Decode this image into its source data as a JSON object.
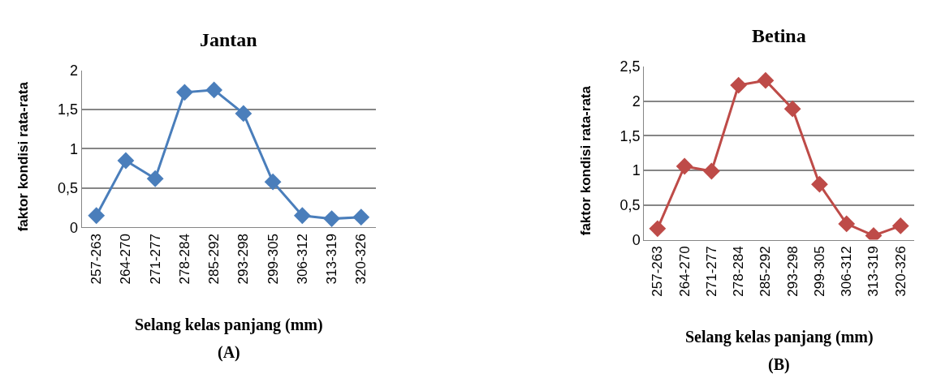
{
  "chart_data": [
    {
      "type": "line",
      "title": "Jantan",
      "xlabel": "Selang kelas panjang (mm)",
      "ylabel": "faktor kondisi rata-rata",
      "annotations": [
        "(A)"
      ],
      "categories": [
        "257-263",
        "264-270",
        "271-277",
        "278-284",
        "285-292",
        "293-298",
        "299-305",
        "306-312",
        "313-319",
        "320-326"
      ],
      "series": [
        {
          "color": "#4a7ebb",
          "values": [
            0.15,
            0.85,
            0.62,
            1.72,
            1.75,
            1.45,
            0.58,
            0.15,
            0.11,
            0.13
          ]
        }
      ],
      "ylim": [
        0,
        2
      ],
      "yticks": [
        0,
        {
          "value": 0.5,
          "label": "0,5"
        },
        1,
        {
          "value": 1.5,
          "label": "1,5"
        },
        2
      ],
      "grid": "y",
      "marker": "diamond",
      "line_style": "solid"
    },
    {
      "type": "line",
      "title": "Betina",
      "xlabel": "Selang kelas panjang (mm)",
      "ylabel": "faktor kondisi rata-rata",
      "annotations": [
        "(B)"
      ],
      "categories": [
        "257-263",
        "264-270",
        "271-277",
        "278-284",
        "285-292",
        "293-298",
        "299-305",
        "306-312",
        "313-319",
        "320-326"
      ],
      "series": [
        {
          "color": "#be4b48",
          "values": [
            0.16,
            1.06,
            0.99,
            2.23,
            2.3,
            1.89,
            0.8,
            0.23,
            0.06,
            0.2
          ]
        }
      ],
      "ylim": [
        0,
        2.5
      ],
      "yticks": [
        0,
        {
          "value": 0.5,
          "label": "0,5"
        },
        1,
        {
          "value": 1.5,
          "label": "1,5"
        },
        2,
        {
          "value": 2.5,
          "label": "2,5"
        }
      ],
      "grid": "y",
      "marker": "diamond",
      "line_style": "solid"
    }
  ]
}
